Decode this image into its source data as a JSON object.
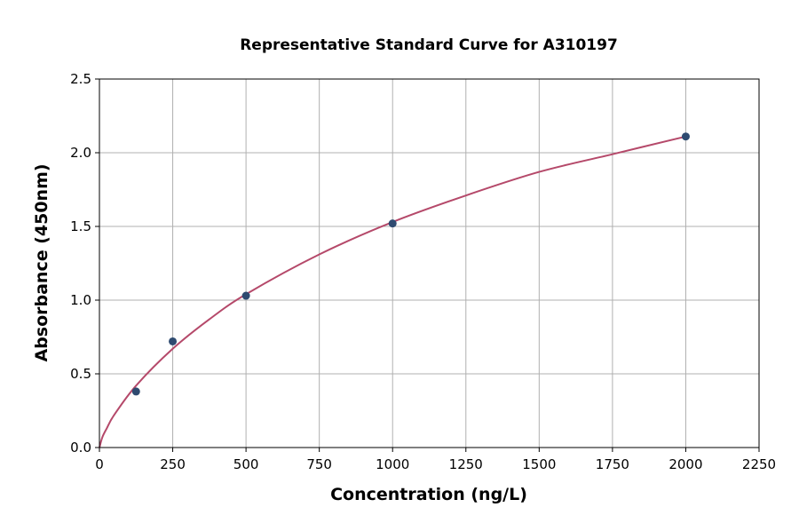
{
  "chart_data": {
    "type": "scatter",
    "title": "Representative Standard Curve for A310197",
    "xlabel": "Concentration (ng/L)",
    "ylabel": "Absorbance (450nm)",
    "xlim": [
      0,
      2250
    ],
    "ylim": [
      0,
      2.5
    ],
    "xticks": [
      0,
      250,
      500,
      750,
      1000,
      1250,
      1500,
      1750,
      2000,
      2250
    ],
    "yticks": [
      0.0,
      0.5,
      1.0,
      1.5,
      2.0,
      2.5
    ],
    "xtick_labels": [
      "0",
      "250",
      "500",
      "750",
      "1000",
      "1250",
      "1500",
      "1750",
      "2000",
      "2250"
    ],
    "ytick_labels": [
      "0.0",
      "0.5",
      "1.0",
      "1.5",
      "2.0",
      "2.5"
    ],
    "grid": true,
    "points": {
      "x": [
        125,
        250,
        500,
        1000,
        2000
      ],
      "y": [
        0.38,
        0.72,
        1.03,
        1.52,
        2.11
      ],
      "color": "#2e4a70"
    },
    "fit_curve": {
      "x": [
        0,
        10,
        25,
        50,
        125,
        250,
        375,
        500,
        750,
        1000,
        1250,
        1500,
        1750,
        2000
      ],
      "y": [
        0,
        0.07,
        0.13,
        0.22,
        0.42,
        0.67,
        0.87,
        1.04,
        1.31,
        1.53,
        1.71,
        1.87,
        1.99,
        2.11
      ],
      "color": "#b5496a"
    }
  }
}
